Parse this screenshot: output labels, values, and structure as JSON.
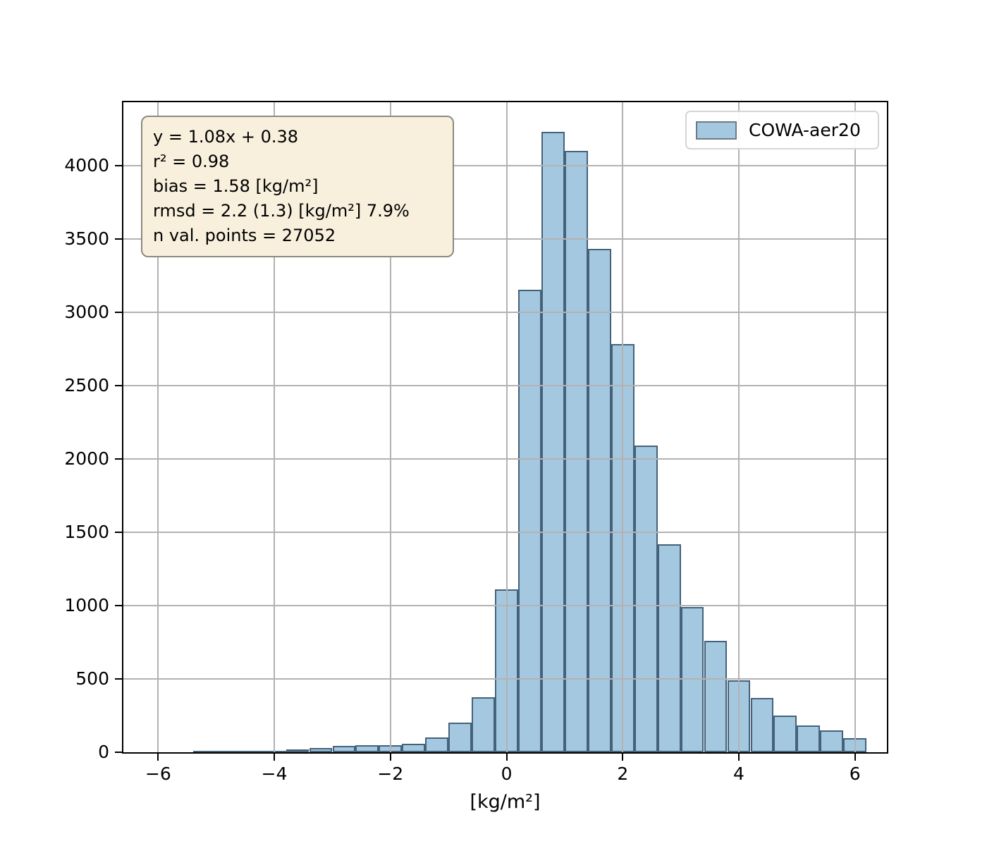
{
  "chart_data": {
    "type": "bar",
    "subtype": "histogram",
    "title": "",
    "xlabel": "[kg/m²]",
    "ylabel": "",
    "xlim": [
      -6.6,
      6.55
    ],
    "ylim": [
      0,
      4430
    ],
    "grid": true,
    "grid_color": "#b2b2b2",
    "legend_position": "upper right",
    "series_name": "COWA-aer20",
    "bar_fill": "#a5c8e1",
    "bar_edge": "#44627a",
    "bin_edges": [
      -5.4,
      -5.0,
      -4.6,
      -4.2,
      -3.8,
      -3.4,
      -3.0,
      -2.6,
      -2.2,
      -1.8,
      -1.4,
      -1.0,
      -0.6,
      -0.2,
      0.2,
      0.6,
      1.0,
      1.4,
      1.8,
      2.2,
      2.6,
      3.0,
      3.4,
      3.8,
      4.2,
      4.6,
      5.0,
      5.4,
      5.8,
      6.2
    ],
    "counts": [
      5,
      6,
      8,
      12,
      20,
      30,
      45,
      50,
      48,
      58,
      100,
      200,
      375,
      1110,
      3150,
      4230,
      4100,
      3430,
      2780,
      2090,
      1420,
      990,
      760,
      490,
      370,
      250,
      185,
      150,
      95
    ],
    "x_ticks": [
      {
        "v": -6,
        "label": "−6"
      },
      {
        "v": -4,
        "label": "−4"
      },
      {
        "v": -2,
        "label": "−2"
      },
      {
        "v": 0,
        "label": "0"
      },
      {
        "v": 2,
        "label": "2"
      },
      {
        "v": 4,
        "label": "4"
      },
      {
        "v": 6,
        "label": "6"
      }
    ],
    "y_ticks": [
      {
        "v": 0,
        "label": "0"
      },
      {
        "v": 500,
        "label": "500"
      },
      {
        "v": 1000,
        "label": "1000"
      },
      {
        "v": 1500,
        "label": "1500"
      },
      {
        "v": 2000,
        "label": "2000"
      },
      {
        "v": 2500,
        "label": "2500"
      },
      {
        "v": 3000,
        "label": "3000"
      },
      {
        "v": 3500,
        "label": "3500"
      },
      {
        "v": 4000,
        "label": "4000"
      }
    ]
  },
  "stats_box": {
    "bg": "#f8f0dc",
    "border": "#8a8a82",
    "lines": [
      "y = 1.08x + 0.38",
      "r² = 0.98",
      "bias = 1.58 [kg/m²]",
      "rmsd = 2.2 (1.3) [kg/m²] 7.9%",
      "n val. points = 27052"
    ]
  },
  "legend": {
    "label": "COWA-aer20",
    "swatch_fill": "#a5c8e1",
    "swatch_edge": "#6d7a84"
  }
}
